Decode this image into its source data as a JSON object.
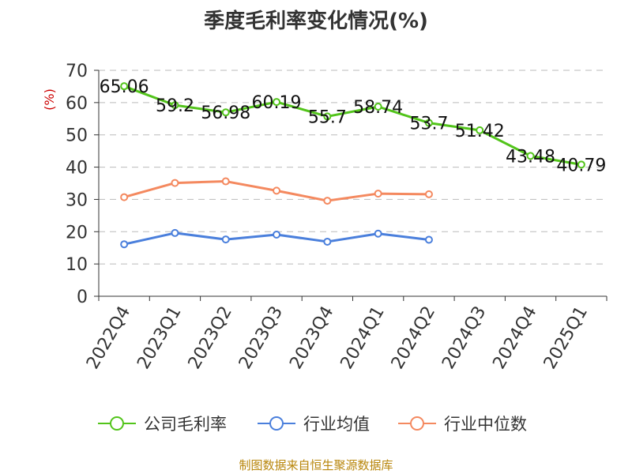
{
  "title": "季度毛利率变化情况(%)",
  "source": "制图数据来自恒生聚源数据库",
  "colors": {
    "gross": "#52c41a",
    "avg": "#4a7fdc",
    "median": "#f4895f",
    "ylabel": "#cc0000"
  },
  "chart_data": {
    "type": "line",
    "title": "季度毛利率变化情况(%)",
    "ylabel": "(%)",
    "xlabel": "",
    "ylim": [
      0,
      70
    ],
    "yticks": [
      0,
      10,
      20,
      30,
      40,
      50,
      60,
      70
    ],
    "grid": true,
    "legend_position": "bottom",
    "categories": [
      "2022Q4",
      "2023Q1",
      "2023Q2",
      "2023Q3",
      "2023Q4",
      "2024Q1",
      "2024Q2",
      "2024Q3",
      "2024Q4",
      "2025Q1"
    ],
    "series": [
      {
        "name": "公司毛利率",
        "values": [
          65.06,
          59.2,
          56.98,
          60.19,
          55.7,
          58.74,
          53.7,
          51.42,
          43.48,
          40.79
        ],
        "labels": [
          "65.06",
          "59.2",
          "56.98",
          "60.19",
          "55.7",
          "58.74",
          "53.7",
          "51.42",
          "43.48",
          "40.79"
        ]
      },
      {
        "name": "行业均值",
        "values": [
          16.1,
          19.6,
          17.6,
          19.1,
          16.9,
          19.4,
          17.5,
          null,
          null,
          null
        ]
      },
      {
        "name": "行业中位数",
        "values": [
          30.7,
          35.1,
          35.6,
          32.7,
          29.6,
          31.8,
          31.6,
          null,
          null,
          null
        ]
      }
    ]
  }
}
